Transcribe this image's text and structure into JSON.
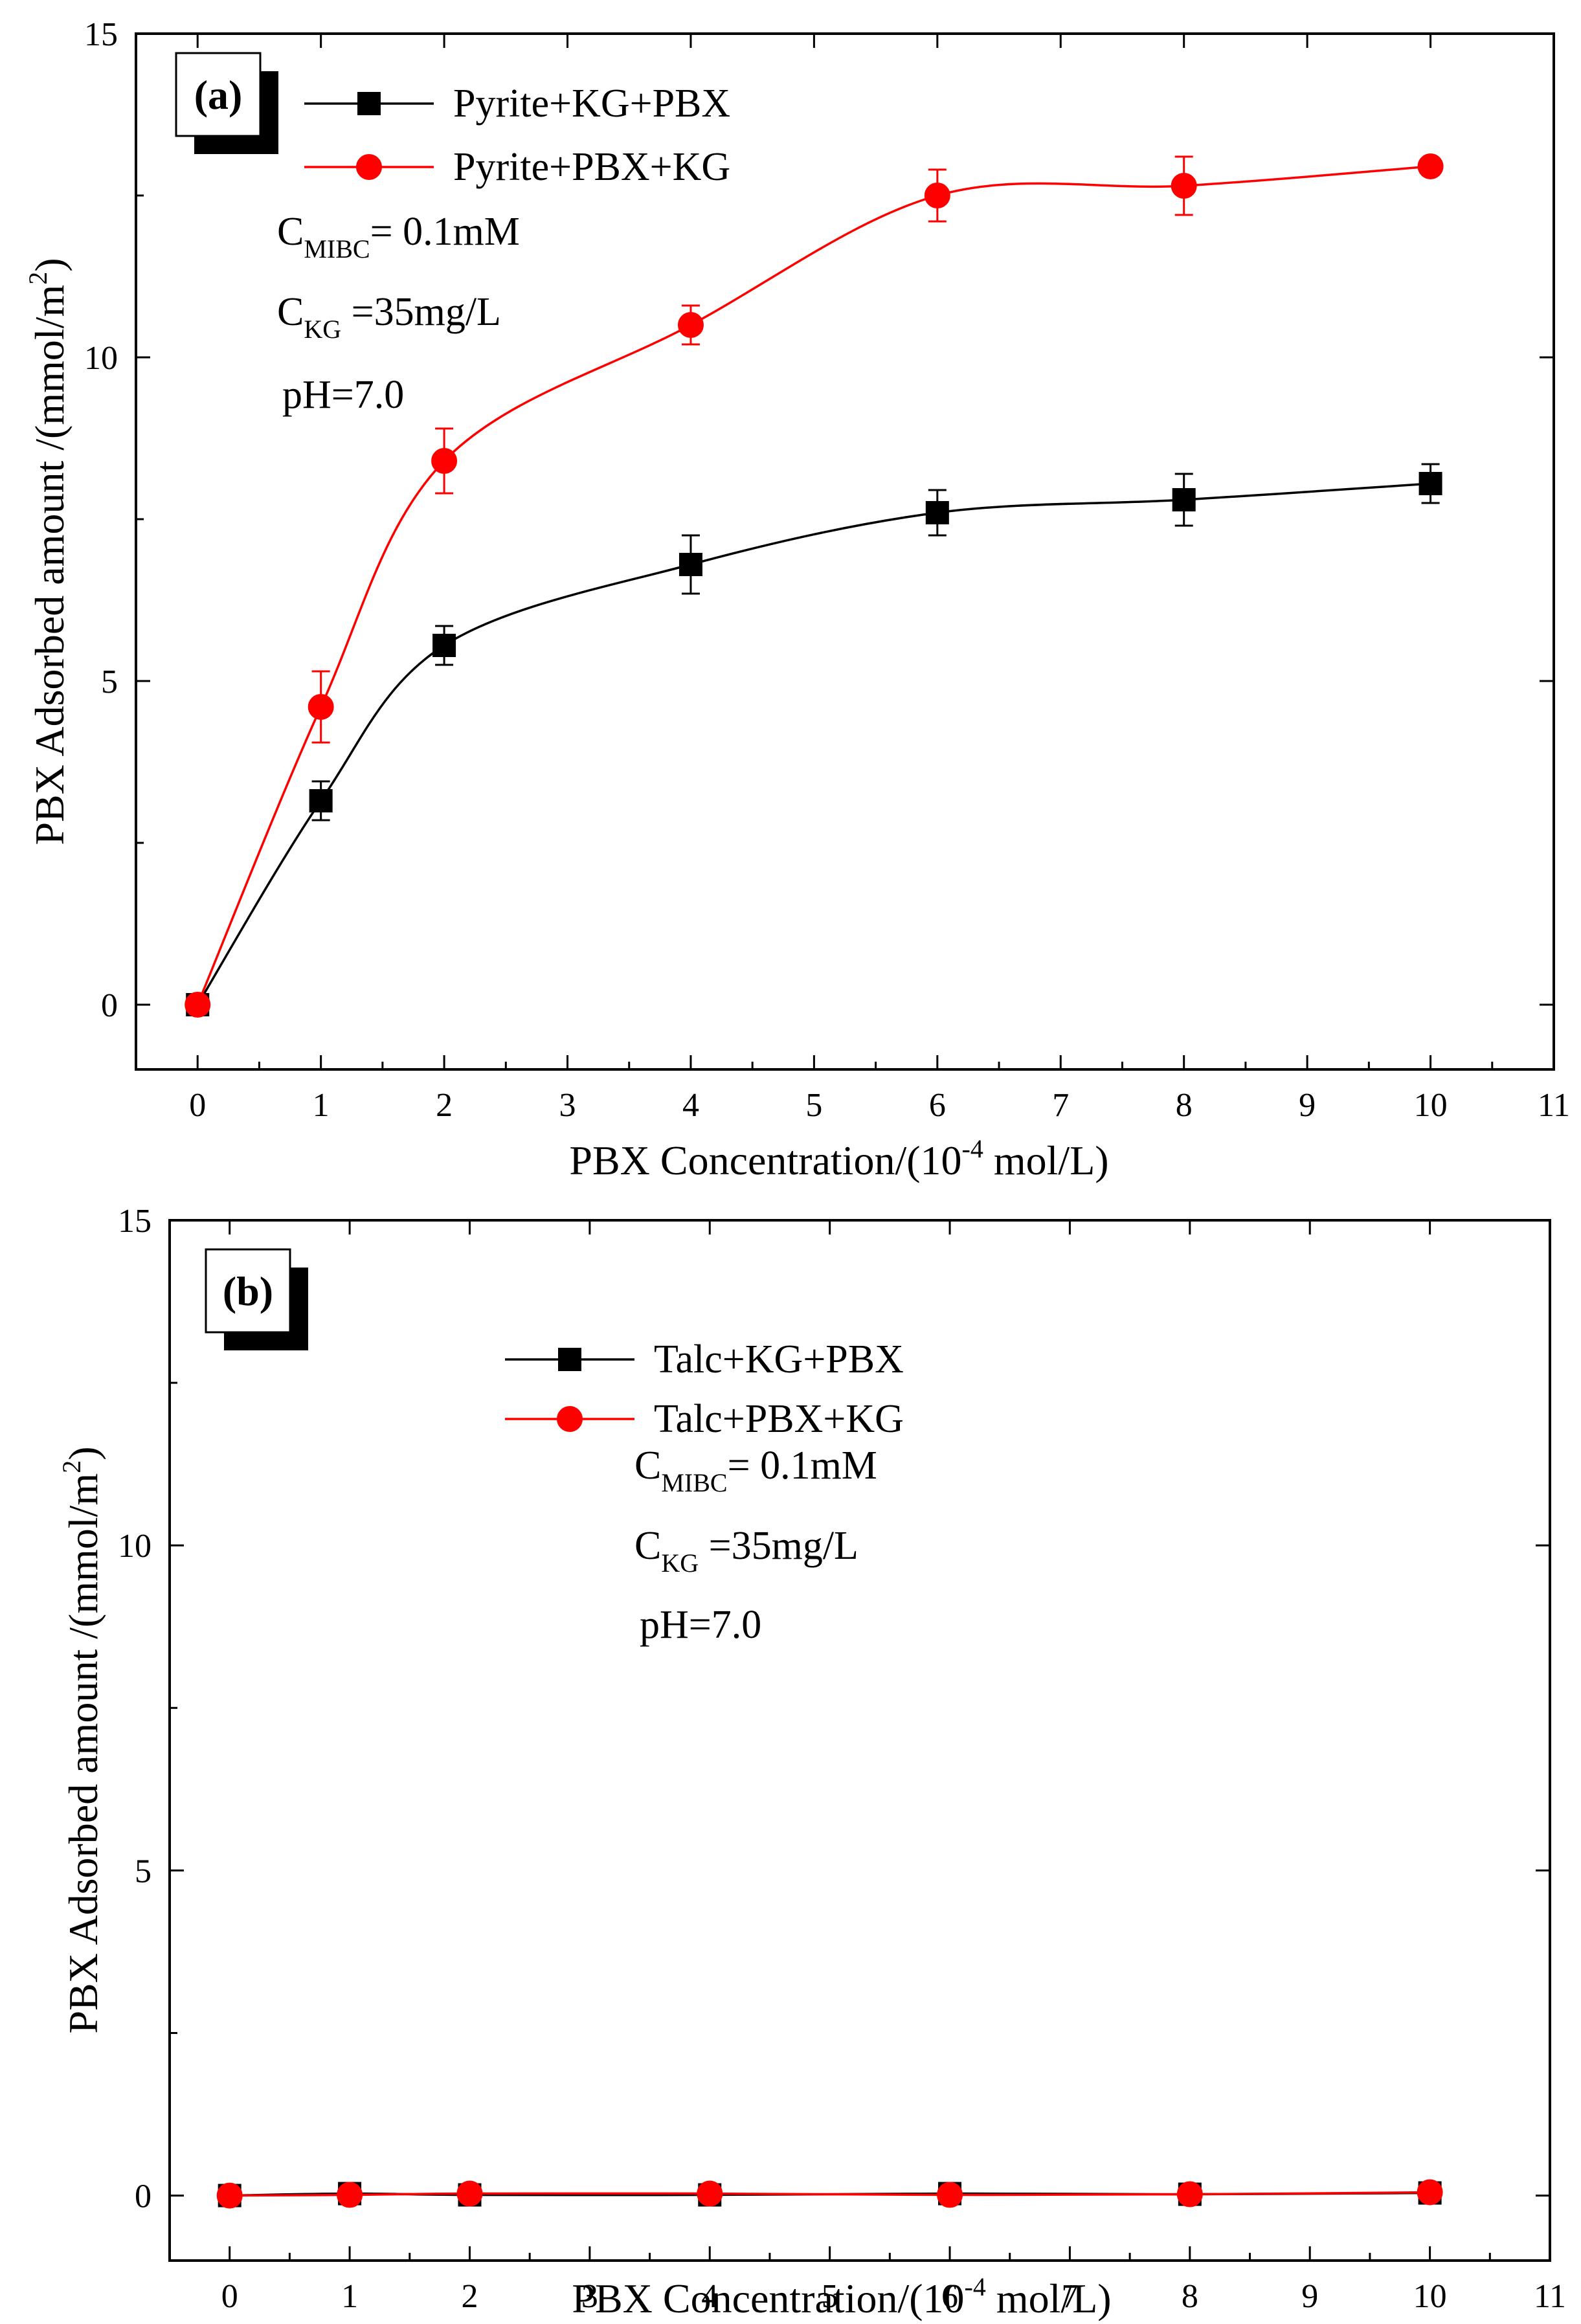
{
  "chart_data": [
    {
      "type": "line",
      "panel_label": "(a)",
      "xlabel_main": "PBX Concentration/(10",
      "xlabel_exp": "-4",
      "xlabel_tail": " mol/L)",
      "ylabel_main": "PBX Adsorbed amount /(mmol/m",
      "ylabel_exp": "2",
      "ylabel_tail": ")",
      "xlim": [
        -0.5,
        11
      ],
      "ylim": [
        -1,
        15
      ],
      "x_ticks": [
        0,
        1,
        2,
        3,
        4,
        5,
        6,
        7,
        8,
        9,
        10,
        11
      ],
      "y_ticks": [
        0,
        5,
        10,
        15
      ],
      "legend_position": "top-left",
      "series": [
        {
          "name": "Pyrite+KG+PBX",
          "color": "#000000",
          "marker": "square",
          "x": [
            0,
            1,
            2,
            4,
            6,
            8,
            10
          ],
          "y": [
            0,
            3.15,
            5.55,
            6.8,
            7.6,
            7.8,
            8.05
          ],
          "err": [
            0,
            0.3,
            0.3,
            0.45,
            0.35,
            0.4,
            0.3
          ]
        },
        {
          "name": "Pyrite+PBX+KG",
          "color": "#ff0000",
          "marker": "circle",
          "x": [
            0,
            1,
            2,
            4,
            6,
            8,
            10
          ],
          "y": [
            0,
            4.6,
            8.4,
            10.5,
            12.5,
            12.65,
            12.95
          ],
          "err": [
            0,
            0.55,
            0.5,
            0.3,
            0.4,
            0.45,
            0
          ]
        }
      ],
      "annotations": {
        "c_mibc": {
          "main": "C",
          "sub": "MIBC",
          "tail": "= 0.1mM"
        },
        "c_kg": {
          "main": "C",
          "sub": "KG",
          "tail": "  =35mg/L"
        },
        "ph": "pH=7.0"
      }
    },
    {
      "type": "line",
      "panel_label": "(b)",
      "xlabel_main": "PBX Concentration/(10",
      "xlabel_exp": "-4",
      "xlabel_tail": " mol/L)",
      "ylabel_main": "PBX Adsorbed amount /(mmol/m",
      "ylabel_exp": "2",
      "ylabel_tail": ")",
      "xlim": [
        -0.5,
        11
      ],
      "ylim": [
        -1,
        15
      ],
      "x_ticks": [
        0,
        1,
        2,
        3,
        4,
        5,
        6,
        7,
        8,
        9,
        10,
        11
      ],
      "y_ticks": [
        0,
        5,
        10,
        15
      ],
      "legend_position": "top-center",
      "series": [
        {
          "name": "Talc+KG+PBX",
          "color": "#000000",
          "marker": "square",
          "x": [
            0,
            1,
            2,
            4,
            6,
            8,
            10
          ],
          "y": [
            0,
            0.03,
            0.01,
            0.01,
            0.03,
            0.02,
            0.04
          ],
          "err": [
            0,
            0,
            0,
            0,
            0,
            0,
            0
          ]
        },
        {
          "name": "Talc+PBX+KG",
          "color": "#ff0000",
          "marker": "circle",
          "x": [
            0,
            1,
            2,
            4,
            6,
            8,
            10
          ],
          "y": [
            0,
            0.01,
            0.03,
            0.03,
            0.01,
            0.02,
            0.05
          ],
          "err": [
            0,
            0,
            0,
            0,
            0,
            0,
            0
          ]
        }
      ],
      "annotations": {
        "c_mibc": {
          "main": "C",
          "sub": "MIBC",
          "tail": "= 0.1mM"
        },
        "c_kg": {
          "main": "C",
          "sub": "KG",
          "tail": "  =35mg/L"
        },
        "ph": "pH=7.0"
      }
    }
  ]
}
